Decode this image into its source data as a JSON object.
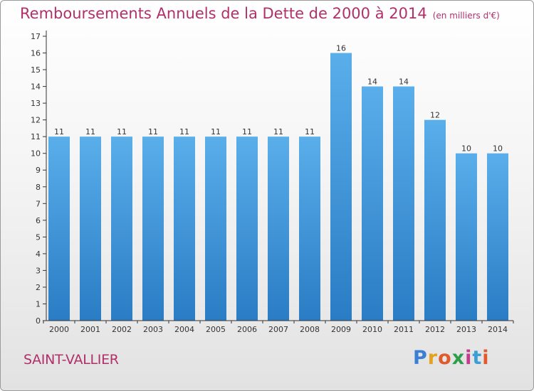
{
  "chart_data": {
    "type": "bar",
    "title": "Remboursements Annuels de la Dette de 2000 à 2014",
    "unit": "(en milliers d'€)",
    "categories": [
      "2000",
      "2001",
      "2002",
      "2003",
      "2004",
      "2005",
      "2006",
      "2007",
      "2008",
      "2009",
      "2010",
      "2011",
      "2012",
      "2013",
      "2014"
    ],
    "values": [
      11,
      11,
      11,
      11,
      11,
      11,
      11,
      11,
      11,
      16,
      14,
      14,
      12,
      10,
      10
    ],
    "ylim": [
      0,
      17
    ],
    "yticks": [
      0,
      1,
      2,
      3,
      4,
      5,
      6,
      7,
      8,
      9,
      10,
      11,
      12,
      13,
      14,
      15,
      16,
      17
    ],
    "grid": false,
    "bar_color_top": "#5aaeea",
    "bar_color_bottom": "#2a7cc4"
  },
  "commune": "SAINT-VALLIER",
  "logo": {
    "text": "Proxiti",
    "letter_colors": [
      "#3b7fd4",
      "#e6a11f",
      "#e05a2b",
      "#2f9e4a",
      "#c33d8f",
      "#3b9ed4",
      "#e05a2b"
    ]
  },
  "colors": {
    "title": "#b0306a",
    "axis": "#333333"
  }
}
